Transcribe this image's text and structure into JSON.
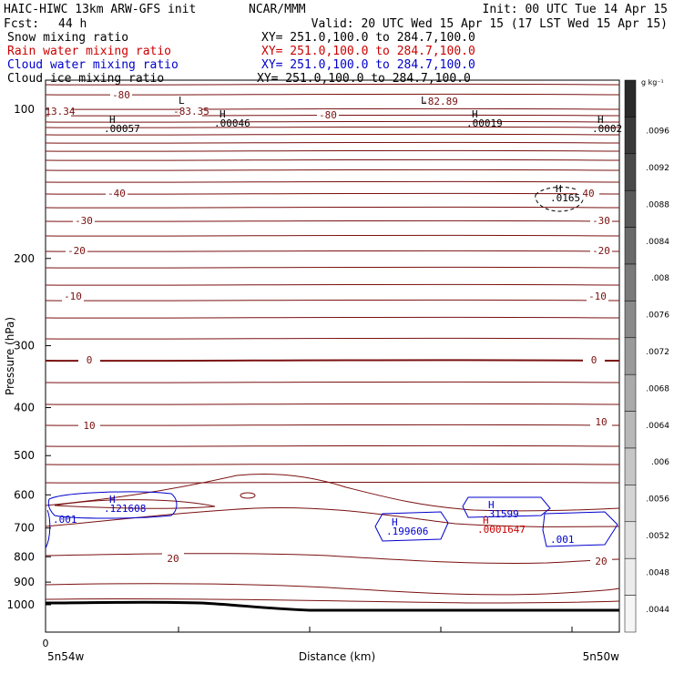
{
  "header": {
    "title_left": "HAIC-HIWC 13km ARW-GFS init",
    "title_center": "NCAR/MMM",
    "init": "Init: 00 UTC Tue 14 Apr 15",
    "fcst_label": "Fcst:",
    "fcst_value": "44 h",
    "valid": "Valid: 20 UTC Wed 15 Apr 15 (17 LST Wed 15 Apr 15)"
  },
  "fields": [
    {
      "name": "Snow mixing ratio",
      "xy": "XY= 251.0,100.0 to 284.7,100.0",
      "color": "#000000"
    },
    {
      "name": "Rain water mixing ratio",
      "xy": "XY= 251.0,100.0 to 284.7,100.0",
      "color": "#cc0000"
    },
    {
      "name": "Cloud water mixing ratio",
      "xy": "XY= 251.0,100.0 to 284.7,100.0",
      "color": "#0000cc"
    },
    {
      "name": "Cloud ice mixing ratio",
      "xy": "XY= 251.0,100.0 to 284.7,100.0",
      "color": "#000000"
    }
  ],
  "chart_data": {
    "type": "contour",
    "ylabel": "Pressure (hPa)",
    "xlabel": "Distance (km)",
    "y_ticks": [
      100,
      200,
      300,
      400,
      500,
      600,
      700,
      800,
      900,
      1000
    ],
    "ylim": [
      1050,
      50
    ],
    "y_scale": "log",
    "x_tick_label": "0",
    "x_left_label": "5n54w",
    "x_right_label": "5n50w",
    "temperature_contour_labels": [
      {
        "value": "-80"
      },
      {
        "value": "-83.35"
      },
      {
        "value": "-82.89"
      },
      {
        "value": "13.34"
      },
      {
        "value": "-80"
      },
      {
        "value": "-40"
      },
      {
        "value": "40"
      },
      {
        "value": "-30"
      },
      {
        "value": "-30"
      },
      {
        "value": "-20"
      },
      {
        "value": "-20"
      },
      {
        "value": "-10"
      },
      {
        "value": "-10"
      },
      {
        "value": "0"
      },
      {
        "value": "0"
      },
      {
        "value": "10"
      },
      {
        "value": "10"
      },
      {
        "value": "20"
      },
      {
        "value": "20"
      }
    ],
    "extrema_labels": [
      {
        "kind": "L",
        "value": ""
      },
      {
        "kind": "L",
        "value": ""
      },
      {
        "kind": "H",
        "value": ".00057"
      },
      {
        "kind": "H",
        "value": ".00046"
      },
      {
        "kind": "H",
        "value": ".00019"
      },
      {
        "kind": "H",
        "value": ".0002"
      },
      {
        "kind": "H",
        "value": ".0165"
      },
      {
        "kind": "H",
        "value": ".121608"
      },
      {
        "kind": "H",
        "value": ".199606"
      },
      {
        "kind": "H",
        "value": ".31599"
      },
      {
        "kind": "H",
        "value": ".0001647"
      }
    ],
    "cloud_water_labels": [
      ".001",
      ".001"
    ],
    "colorbar": {
      "unit": "g kg⁻¹",
      "ticks": [
        ".0096",
        ".0092",
        ".0088",
        ".0084",
        ".008",
        ".0076",
        ".0072",
        ".0068",
        ".0064",
        ".006",
        ".0056",
        ".0052",
        ".0048",
        ".0044"
      ],
      "colors": [
        "#2a2a2a",
        "#3a3a3a",
        "#4a4a4a",
        "#5a5a5a",
        "#6a6a6a",
        "#7a7a7a",
        "#8a8a8a",
        "#9a9a9a",
        "#aaaaaa",
        "#b8b8b8",
        "#c6c6c6",
        "#d4d4d4",
        "#e0e0e0",
        "#ececec",
        "#f6f6f6"
      ]
    },
    "colors": {
      "temperature": "#7a1010",
      "cloud_water": "#0000cc",
      "rain": "#cc0000",
      "ground": "#000000"
    }
  }
}
